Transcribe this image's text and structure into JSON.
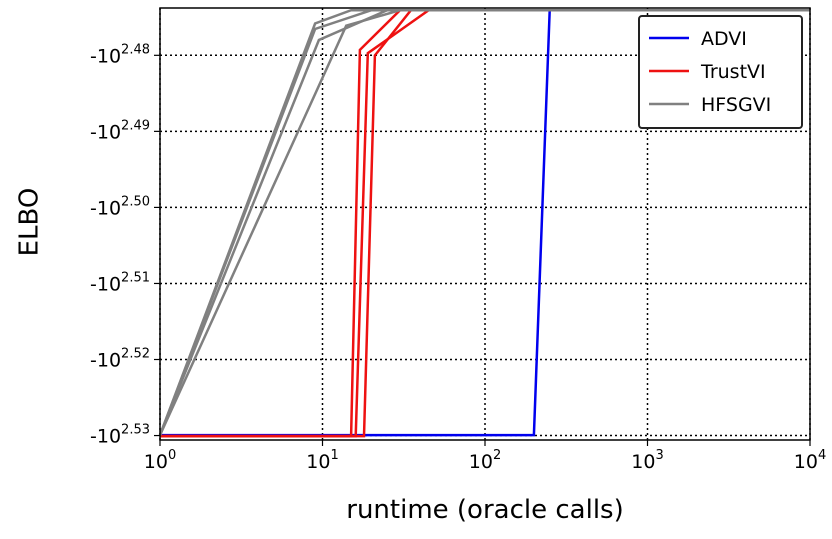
{
  "chart_data": {
    "type": "line",
    "xlabel": "runtime (oracle calls)",
    "ylabel": "ELBO",
    "xscale": "log",
    "yscale": "log",
    "xlim": [
      1,
      10000
    ],
    "xticks": [
      {
        "value": 1,
        "label": "10",
        "exponent": "0"
      },
      {
        "value": 10,
        "label": "10",
        "exponent": "1"
      },
      {
        "value": 100,
        "label": "10",
        "exponent": "2"
      },
      {
        "value": 1000,
        "label": "10",
        "exponent": "3"
      },
      {
        "value": 10000,
        "label": "10",
        "exponent": "4"
      }
    ],
    "ylim": [
      -339.3,
      -297.7
    ],
    "yticks": [
      {
        "value": -301.995,
        "label": "-10",
        "exponent": "2.48"
      },
      {
        "value": -309.03,
        "label": "-10",
        "exponent": "2.49"
      },
      {
        "value": -316.228,
        "label": "-10",
        "exponent": "2.50"
      },
      {
        "value": -323.594,
        "label": "-10",
        "exponent": "2.51"
      },
      {
        "value": -331.131,
        "label": "-10",
        "exponent": "2.52"
      },
      {
        "value": -338.844,
        "label": "-10",
        "exponent": "2.53"
      }
    ],
    "grid": true,
    "legend": "upper right",
    "series": [
      {
        "name": "ADVI",
        "color": "#0000ee",
        "runs": [
          {
            "x": [
              1,
              200,
              250,
              10000
            ],
            "values": [
              -338.8,
              -338.8,
              -297.9,
              -297.9
            ]
          }
        ]
      },
      {
        "name": "TrustVI",
        "color": "#ee1111",
        "runs": [
          {
            "x": [
              1,
              15,
              17,
              30,
              10000
            ],
            "values": [
              -338.9,
              -338.9,
              -301.5,
              -297.9,
              -297.9
            ]
          },
          {
            "x": [
              1,
              18,
              21,
              35,
              10000
            ],
            "values": [
              -338.9,
              -338.9,
              -302,
              -297.9,
              -297.9
            ]
          },
          {
            "x": [
              1,
              16,
              19,
              45,
              10000
            ],
            "values": [
              -338.9,
              -338.9,
              -301.8,
              -297.9,
              -297.9
            ]
          }
        ]
      },
      {
        "name": "HFSGVI",
        "color": "#808080",
        "runs": [
          {
            "x": [
              1,
              9,
              15,
              10000
            ],
            "values": [
              -338.8,
              -299.1,
              -297.9,
              -297.9
            ]
          },
          {
            "x": [
              1,
              9,
              20,
              10000
            ],
            "values": [
              -338.8,
              -299.6,
              -297.9,
              -297.9
            ]
          },
          {
            "x": [
              1,
              9.5,
              25,
              10000
            ],
            "values": [
              -338.8,
              -300.6,
              -297.9,
              -297.9
            ]
          },
          {
            "x": [
              1,
              14,
              30,
              10000
            ],
            "values": [
              -338.8,
              -299.3,
              -297.9,
              -297.9
            ]
          }
        ]
      }
    ]
  }
}
